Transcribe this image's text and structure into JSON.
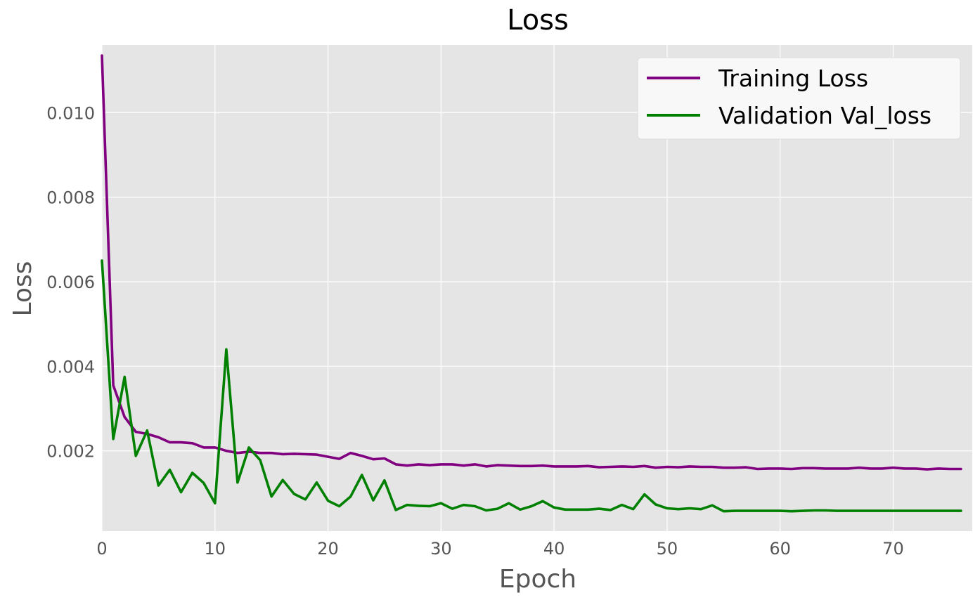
{
  "chart_data": {
    "type": "line",
    "title": "Loss",
    "xlabel": "Epoch",
    "ylabel": "Loss",
    "xlim": [
      0,
      77
    ],
    "ylim": [
      0.0001,
      0.0116
    ],
    "grid": true,
    "legend_position": "top-right",
    "xticks": [
      0,
      10,
      20,
      30,
      40,
      50,
      60,
      70
    ],
    "xtick_labels": [
      "0",
      "10",
      "20",
      "30",
      "40",
      "50",
      "60",
      "70"
    ],
    "yticks": [
      0.002,
      0.004,
      0.006,
      0.008,
      0.01
    ],
    "ytick_labels": [
      "0.002",
      "0.004",
      "0.006",
      "0.008",
      "0.010"
    ],
    "x": [
      0,
      1,
      2,
      3,
      4,
      5,
      6,
      7,
      8,
      9,
      10,
      11,
      12,
      13,
      14,
      15,
      16,
      17,
      18,
      19,
      20,
      21,
      22,
      23,
      24,
      25,
      26,
      27,
      28,
      29,
      30,
      31,
      32,
      33,
      34,
      35,
      36,
      37,
      38,
      39,
      40,
      41,
      42,
      43,
      44,
      45,
      46,
      47,
      48,
      49,
      50,
      51,
      52,
      53,
      54,
      55,
      56,
      57,
      58,
      59,
      60,
      61,
      62,
      63,
      64,
      65,
      66,
      67,
      68,
      69,
      70,
      71,
      72,
      73,
      74,
      75,
      76
    ],
    "series": [
      {
        "name": "Training Loss",
        "color": "#800080",
        "values": [
          0.01135,
          0.00355,
          0.0028,
          0.00245,
          0.0024,
          0.00232,
          0.0022,
          0.0022,
          0.00218,
          0.00208,
          0.00208,
          0.002,
          0.00195,
          0.00198,
          0.00195,
          0.00195,
          0.00192,
          0.00193,
          0.00192,
          0.00191,
          0.00186,
          0.00181,
          0.00195,
          0.00188,
          0.0018,
          0.00182,
          0.00168,
          0.00165,
          0.00168,
          0.00166,
          0.00168,
          0.00168,
          0.00165,
          0.00168,
          0.00163,
          0.00166,
          0.00165,
          0.00164,
          0.00164,
          0.00165,
          0.00163,
          0.00163,
          0.00163,
          0.00164,
          0.00161,
          0.00162,
          0.00163,
          0.00162,
          0.00164,
          0.0016,
          0.00162,
          0.00161,
          0.00163,
          0.00162,
          0.00162,
          0.0016,
          0.0016,
          0.00161,
          0.00157,
          0.00158,
          0.00158,
          0.00157,
          0.00159,
          0.00159,
          0.00158,
          0.00158,
          0.00158,
          0.0016,
          0.00158,
          0.00158,
          0.0016,
          0.00158,
          0.00158,
          0.00156,
          0.00158,
          0.00157,
          0.00157
        ]
      },
      {
        "name": "Validation Val_loss",
        "color": "#008000",
        "values": [
          0.0065,
          0.00228,
          0.00375,
          0.00188,
          0.00248,
          0.00118,
          0.00155,
          0.00102,
          0.00148,
          0.00124,
          0.00076,
          0.0044,
          0.00125,
          0.00208,
          0.00178,
          0.00092,
          0.00131,
          0.00098,
          0.00085,
          0.00125,
          0.00082,
          0.00069,
          0.00092,
          0.00143,
          0.00083,
          0.0013,
          0.0006,
          0.00072,
          0.0007,
          0.00069,
          0.00076,
          0.00063,
          0.00072,
          0.00069,
          0.00059,
          0.00063,
          0.00076,
          0.00061,
          0.00069,
          0.00081,
          0.00066,
          0.00061,
          0.00061,
          0.00061,
          0.00063,
          0.0006,
          0.00072,
          0.00062,
          0.00097,
          0.00073,
          0.00064,
          0.00062,
          0.00064,
          0.00062,
          0.00071,
          0.00057,
          0.00058,
          0.00058,
          0.00058,
          0.00058,
          0.00058,
          0.00057,
          0.00058,
          0.00059,
          0.00059,
          0.00058,
          0.00058,
          0.00058,
          0.00058,
          0.00058,
          0.00058,
          0.00058,
          0.00058,
          0.00058,
          0.00058,
          0.00058,
          0.00058
        ]
      }
    ]
  },
  "style": {
    "plot_background": "#e5e5e5",
    "grid_color": "#ffffff",
    "legend_background": "#f8f8f8"
  }
}
